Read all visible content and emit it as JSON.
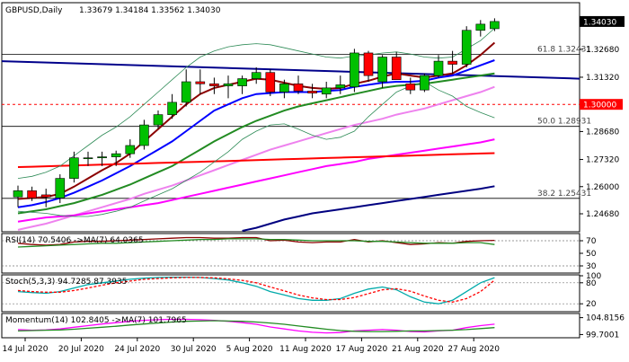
{
  "header": {
    "symbol": "GBPUSD,Daily",
    "ohlc": "1.33679 1.34184 1.33562 1.34030"
  },
  "colors": {
    "bull": "#00c000",
    "bear": "#ff0000",
    "wick": "#000000",
    "ma_short": "#8b0000",
    "ma_blue": "#0000ff",
    "ma_green": "#228b22",
    "ma_violet": "#ee82ee",
    "ma_magenta": "#ff00ff",
    "ma_red": "#ff0000",
    "ma_navy": "#000080",
    "bollinger": "#2e8b57",
    "trendline": "#00008b",
    "fib": "#000000",
    "support": "#ff0000",
    "rsi": "#8b0000",
    "rsi_ma": "#228b22",
    "stoch_main": "#00aaaa",
    "stoch_signal": "#ff0000",
    "momentum": "#ff00ff",
    "momentum_ma": "#228b22",
    "price_tag_bg": "#000000",
    "price_tag_text": "#ffffff",
    "support_tag_bg": "#ff0000"
  },
  "chart_data": [
    {
      "type": "candlestick",
      "title": "GBPUSD,Daily",
      "ylim": [
        1.2385,
        1.349
      ],
      "y_ticks": [
        "1.32680",
        "1.31320",
        "1.28680",
        "1.27320",
        "1.26000",
        "1.24680"
      ],
      "x_ticks": [
        {
          "label": "14 Jul 2020",
          "index": 0
        },
        {
          "label": "20 Jul 2020",
          "index": 4
        },
        {
          "label": "24 Jul 2020",
          "index": 8
        },
        {
          "label": "30 Jul 2020",
          "index": 12
        },
        {
          "label": "5 Aug 2020",
          "index": 16
        },
        {
          "label": "11 Aug 2020",
          "index": 20
        },
        {
          "label": "17 Aug 2020",
          "index": 24
        },
        {
          "label": "21 Aug 2020",
          "index": 28
        },
        {
          "label": "27 Aug 2020",
          "index": 32
        }
      ],
      "candles": [
        {
          "o": 1.255,
          "h": 1.2605,
          "l": 1.25,
          "c": 1.258
        },
        {
          "o": 1.258,
          "h": 1.26,
          "l": 1.253,
          "c": 1.2545
        },
        {
          "o": 1.256,
          "h": 1.259,
          "l": 1.25,
          "c": 1.255
        },
        {
          "o": 1.2545,
          "h": 1.266,
          "l": 1.252,
          "c": 1.264
        },
        {
          "o": 1.264,
          "h": 1.277,
          "l": 1.262,
          "c": 1.274
        },
        {
          "o": 1.274,
          "h": 1.277,
          "l": 1.27,
          "c": 1.274
        },
        {
          "o": 1.274,
          "h": 1.277,
          "l": 1.27,
          "c": 1.2745
        },
        {
          "o": 1.2745,
          "h": 1.2775,
          "l": 1.27,
          "c": 1.276
        },
        {
          "o": 1.276,
          "h": 1.283,
          "l": 1.274,
          "c": 1.28
        },
        {
          "o": 1.28,
          "h": 1.2925,
          "l": 1.278,
          "c": 1.29
        },
        {
          "o": 1.29,
          "h": 1.297,
          "l": 1.288,
          "c": 1.295
        },
        {
          "o": 1.295,
          "h": 1.305,
          "l": 1.293,
          "c": 1.301
        },
        {
          "o": 1.301,
          "h": 1.317,
          "l": 1.299,
          "c": 1.311
        },
        {
          "o": 1.311,
          "h": 1.317,
          "l": 1.305,
          "c": 1.31
        },
        {
          "o": 1.31,
          "h": 1.313,
          "l": 1.305,
          "c": 1.309
        },
        {
          "o": 1.309,
          "h": 1.314,
          "l": 1.303,
          "c": 1.31
        },
        {
          "o": 1.309,
          "h": 1.314,
          "l": 1.305,
          "c": 1.3125
        },
        {
          "o": 1.3125,
          "h": 1.318,
          "l": 1.31,
          "c": 1.3155
        },
        {
          "o": 1.3155,
          "h": 1.317,
          "l": 1.304,
          "c": 1.306
        },
        {
          "o": 1.306,
          "h": 1.312,
          "l": 1.303,
          "c": 1.31
        },
        {
          "o": 1.31,
          "h": 1.314,
          "l": 1.305,
          "c": 1.3065
        },
        {
          "o": 1.3065,
          "h": 1.31,
          "l": 1.303,
          "c": 1.3055
        },
        {
          "o": 1.305,
          "h": 1.311,
          "l": 1.303,
          "c": 1.308
        },
        {
          "o": 1.308,
          "h": 1.314,
          "l": 1.305,
          "c": 1.3095
        },
        {
          "o": 1.3085,
          "h": 1.327,
          "l": 1.306,
          "c": 1.325
        },
        {
          "o": 1.325,
          "h": 1.326,
          "l": 1.311,
          "c": 1.314
        },
        {
          "o": 1.311,
          "h": 1.324,
          "l": 1.308,
          "c": 1.323
        },
        {
          "o": 1.323,
          "h": 1.3255,
          "l": 1.312,
          "c": 1.312
        },
        {
          "o": 1.31,
          "h": 1.313,
          "l": 1.305,
          "c": 1.307
        },
        {
          "o": 1.307,
          "h": 1.315,
          "l": 1.306,
          "c": 1.314
        },
        {
          "o": 1.314,
          "h": 1.324,
          "l": 1.313,
          "c": 1.321
        },
        {
          "o": 1.321,
          "h": 1.326,
          "l": 1.315,
          "c": 1.3195
        },
        {
          "o": 1.3195,
          "h": 1.338,
          "l": 1.318,
          "c": 1.336
        },
        {
          "o": 1.336,
          "h": 1.341,
          "l": 1.333,
          "c": 1.339
        },
        {
          "o": 1.33679,
          "h": 1.34184,
          "l": 1.33562,
          "c": 1.3403
        }
      ],
      "series": [
        {
          "name": "",
          "color_key": "ma_short",
          "values": [
            1.254,
            1.2545,
            1.255,
            1.2565,
            1.26,
            1.264,
            1.268,
            1.2715,
            1.276,
            1.282,
            1.288,
            1.294,
            1.3,
            1.305,
            1.308,
            1.3095,
            1.311,
            1.3125,
            1.312,
            1.3105,
            1.309,
            1.308,
            1.3075,
            1.308,
            1.31,
            1.3115,
            1.3135,
            1.315,
            1.314,
            1.313,
            1.314,
            1.315,
            1.319,
            1.324,
            1.33
          ]
        },
        {
          "name": "",
          "color_key": "ma_blue",
          "values": [
            1.25,
            1.251,
            1.2525,
            1.2545,
            1.257,
            1.26,
            1.263,
            1.2665,
            1.27,
            1.274,
            1.278,
            1.282,
            1.287,
            1.292,
            1.297,
            1.3,
            1.303,
            1.305,
            1.3055,
            1.306,
            1.306,
            1.306,
            1.3065,
            1.307,
            1.3085,
            1.3095,
            1.3105,
            1.311,
            1.311,
            1.3115,
            1.313,
            1.314,
            1.3165,
            1.319,
            1.3215
          ]
        },
        {
          "name": "",
          "color_key": "ma_green",
          "values": [
            1.247,
            1.248,
            1.249,
            1.2505,
            1.252,
            1.254,
            1.256,
            1.2585,
            1.261,
            1.264,
            1.267,
            1.27,
            1.274,
            1.278,
            1.282,
            1.2855,
            1.289,
            1.292,
            1.2945,
            1.297,
            1.299,
            1.3005,
            1.302,
            1.3035,
            1.305,
            1.3065,
            1.308,
            1.309,
            1.3095,
            1.31,
            1.311,
            1.312,
            1.313,
            1.314,
            1.315
          ]
        },
        {
          "name": "",
          "color_key": "ma_violet",
          "values": [
            1.239,
            1.2405,
            1.242,
            1.244,
            1.246,
            1.248,
            1.25,
            1.252,
            1.254,
            1.2565,
            1.2585,
            1.2605,
            1.263,
            1.2655,
            1.268,
            1.2705,
            1.273,
            1.2755,
            1.278,
            1.28,
            1.282,
            1.284,
            1.286,
            1.288,
            1.29,
            1.2915,
            1.293,
            1.295,
            1.2965,
            1.298,
            1.3,
            1.302,
            1.304,
            1.306,
            1.3085
          ]
        },
        {
          "name": "",
          "color_key": "ma_magenta",
          "values": [
            1.243,
            1.244,
            1.245,
            1.2455,
            1.246,
            1.247,
            1.248,
            1.249,
            1.25,
            1.251,
            1.252,
            1.2535,
            1.255,
            1.2565,
            1.258,
            1.2595,
            1.261,
            1.2625,
            1.264,
            1.2655,
            1.267,
            1.2685,
            1.27,
            1.271,
            1.272,
            1.2735,
            1.2745,
            1.2755,
            1.2765,
            1.2775,
            1.2785,
            1.2795,
            1.2805,
            1.2815,
            1.283
          ]
        },
        {
          "name": "",
          "color_key": "ma_red",
          "values": [
            1.2695,
            1.2697,
            1.2699,
            1.2701,
            1.2703,
            1.2705,
            1.2707,
            1.2709,
            1.2711,
            1.2713,
            1.2715,
            1.2717,
            1.2719,
            1.2721,
            1.2723,
            1.2725,
            1.2727,
            1.2729,
            1.2731,
            1.2733,
            1.2735,
            1.2737,
            1.2739,
            1.2741,
            1.2743,
            1.2745,
            1.2747,
            1.2749,
            1.2751,
            1.2753,
            1.2755,
            1.2757,
            1.2759,
            1.2761,
            1.2763
          ]
        },
        {
          "name": "",
          "color_key": "ma_navy",
          "values": [
            null,
            null,
            null,
            null,
            null,
            null,
            null,
            null,
            null,
            null,
            null,
            null,
            null,
            null,
            null,
            null,
            1.2385,
            1.24,
            1.242,
            1.244,
            1.2455,
            1.247,
            1.248,
            1.249,
            1.25,
            1.251,
            1.252,
            1.253,
            1.254,
            1.255,
            1.256,
            1.257,
            1.258,
            1.259,
            1.2602
          ]
        },
        {
          "name": "",
          "color_key": "bollinger",
          "style": "thin",
          "values": [
            1.264,
            1.265,
            1.267,
            1.27,
            1.275,
            1.28,
            1.285,
            1.289,
            1.294,
            1.3,
            1.306,
            1.312,
            1.318,
            1.323,
            1.326,
            1.328,
            1.329,
            1.3295,
            1.329,
            1.3275,
            1.326,
            1.3245,
            1.323,
            1.3225,
            1.3235,
            1.324,
            1.325,
            1.3255,
            1.3245,
            1.323,
            1.3225,
            1.323,
            1.327,
            1.331,
            1.337
          ]
        },
        {
          "name": "",
          "color_key": "bollinger",
          "style": "thin",
          "values": [
            1.248,
            1.2475,
            1.247,
            1.246,
            1.2455,
            1.2455,
            1.2465,
            1.248,
            1.25,
            1.253,
            1.256,
            1.259,
            1.263,
            1.267,
            1.272,
            1.277,
            1.283,
            1.287,
            1.29,
            1.2905,
            1.288,
            1.285,
            1.283,
            1.284,
            1.287,
            1.294,
            1.3,
            1.306,
            1.309,
            1.311,
            1.307,
            1.304,
            1.299,
            1.296,
            1.2935
          ]
        }
      ],
      "trendline": {
        "from": [
          0,
          1.321
        ],
        "to": [
          39,
          1.3125
        ]
      },
      "levels": [
        {
          "label": "61.8 1.32431",
          "value": 1.32431,
          "kind": "fib"
        },
        {
          "label": "50.0 1.28931",
          "value": 1.28931,
          "kind": "fib"
        },
        {
          "label": "38.2 1.25431",
          "value": 1.25431,
          "kind": "fib"
        },
        {
          "label": "1.30000",
          "value": 1.3,
          "kind": "support"
        }
      ],
      "last_price": "1.34030"
    },
    {
      "type": "line",
      "title": "RSI(14) 70.5406 ->MA(7) 64.0365",
      "ylim": [
        20,
        80
      ],
      "y_ticks": [
        "70",
        "50",
        "30"
      ],
      "levels": [
        70,
        30
      ],
      "series": [
        {
          "name": "RSI(14)",
          "color_key": "rsi",
          "values": [
            66,
            64,
            63,
            64,
            68,
            69,
            69,
            70,
            71,
            72,
            73,
            74,
            75,
            75,
            74,
            74,
            75,
            75,
            70,
            71,
            68,
            67,
            68,
            68,
            72,
            68,
            70,
            67,
            64,
            65,
            67,
            66,
            69,
            70,
            70.5406
          ]
        },
        {
          "name": "MA(7)",
          "color_key": "rsi_ma",
          "values": [
            60,
            61,
            62,
            63,
            64,
            65,
            66,
            66,
            67,
            68,
            69,
            70,
            71,
            72,
            72,
            73,
            73,
            73,
            72,
            72,
            71,
            70,
            70,
            70,
            70,
            69,
            69,
            68,
            67,
            66,
            66,
            66,
            67,
            67,
            64.0365
          ]
        }
      ]
    },
    {
      "type": "line",
      "title": "Stoch(5,3,3) 94.7285 87.3935",
      "ylim": [
        0,
        100
      ],
      "y_ticks": [
        "100",
        "80",
        "20"
      ],
      "levels": [
        80,
        20
      ],
      "series": [
        {
          "name": "",
          "color_key": "stoch_main",
          "values": [
            55,
            52,
            50,
            55,
            65,
            75,
            80,
            85,
            90,
            93,
            95,
            96,
            96,
            95,
            92,
            88,
            80,
            70,
            55,
            45,
            35,
            30,
            30,
            35,
            50,
            62,
            68,
            60,
            40,
            25,
            20,
            30,
            55,
            80,
            94.7285
          ]
        },
        {
          "name": "",
          "color_key": "stoch_signal",
          "style": "dashed",
          "values": [
            58,
            55,
            53,
            53,
            58,
            65,
            73,
            80,
            85,
            90,
            92,
            94,
            95,
            95,
            94,
            91,
            87,
            80,
            68,
            57,
            45,
            37,
            32,
            32,
            38,
            49,
            60,
            63,
            56,
            42,
            30,
            25,
            35,
            55,
            87.3935
          ]
        }
      ]
    },
    {
      "type": "line",
      "title": "Momentum(14) 102.8405 ->MA(7) 101.7965",
      "ylim": [
        99.0,
        105.8
      ],
      "y_ticks": [
        "104.8156",
        "99.7001"
      ],
      "series": [
        {
          "name": "Momentum(14)",
          "color_key": "momentum",
          "values": [
            101.2,
            101.0,
            101.1,
            101.4,
            101.9,
            102.4,
            102.9,
            103.3,
            103.7,
            104.0,
            104.2,
            104.3,
            104.3,
            104.2,
            104.0,
            103.7,
            103.3,
            102.8,
            102.0,
            101.4,
            100.8,
            100.4,
            100.2,
            100.3,
            100.8,
            101.0,
            101.2,
            101.0,
            100.6,
            100.5,
            100.8,
            101.0,
            101.8,
            102.4,
            102.8405
          ]
        },
        {
          "name": "MA(7)",
          "color_key": "momentum_ma",
          "values": [
            100.8,
            100.9,
            101.0,
            101.1,
            101.3,
            101.6,
            101.9,
            102.2,
            102.6,
            102.9,
            103.2,
            103.5,
            103.7,
            103.8,
            103.9,
            103.8,
            103.7,
            103.5,
            103.2,
            102.8,
            102.3,
            101.8,
            101.3,
            100.9,
            100.7,
            100.6,
            100.6,
            100.7,
            100.8,
            100.8,
            100.9,
            101.0,
            101.2,
            101.5,
            101.7965
          ]
        }
      ]
    }
  ]
}
